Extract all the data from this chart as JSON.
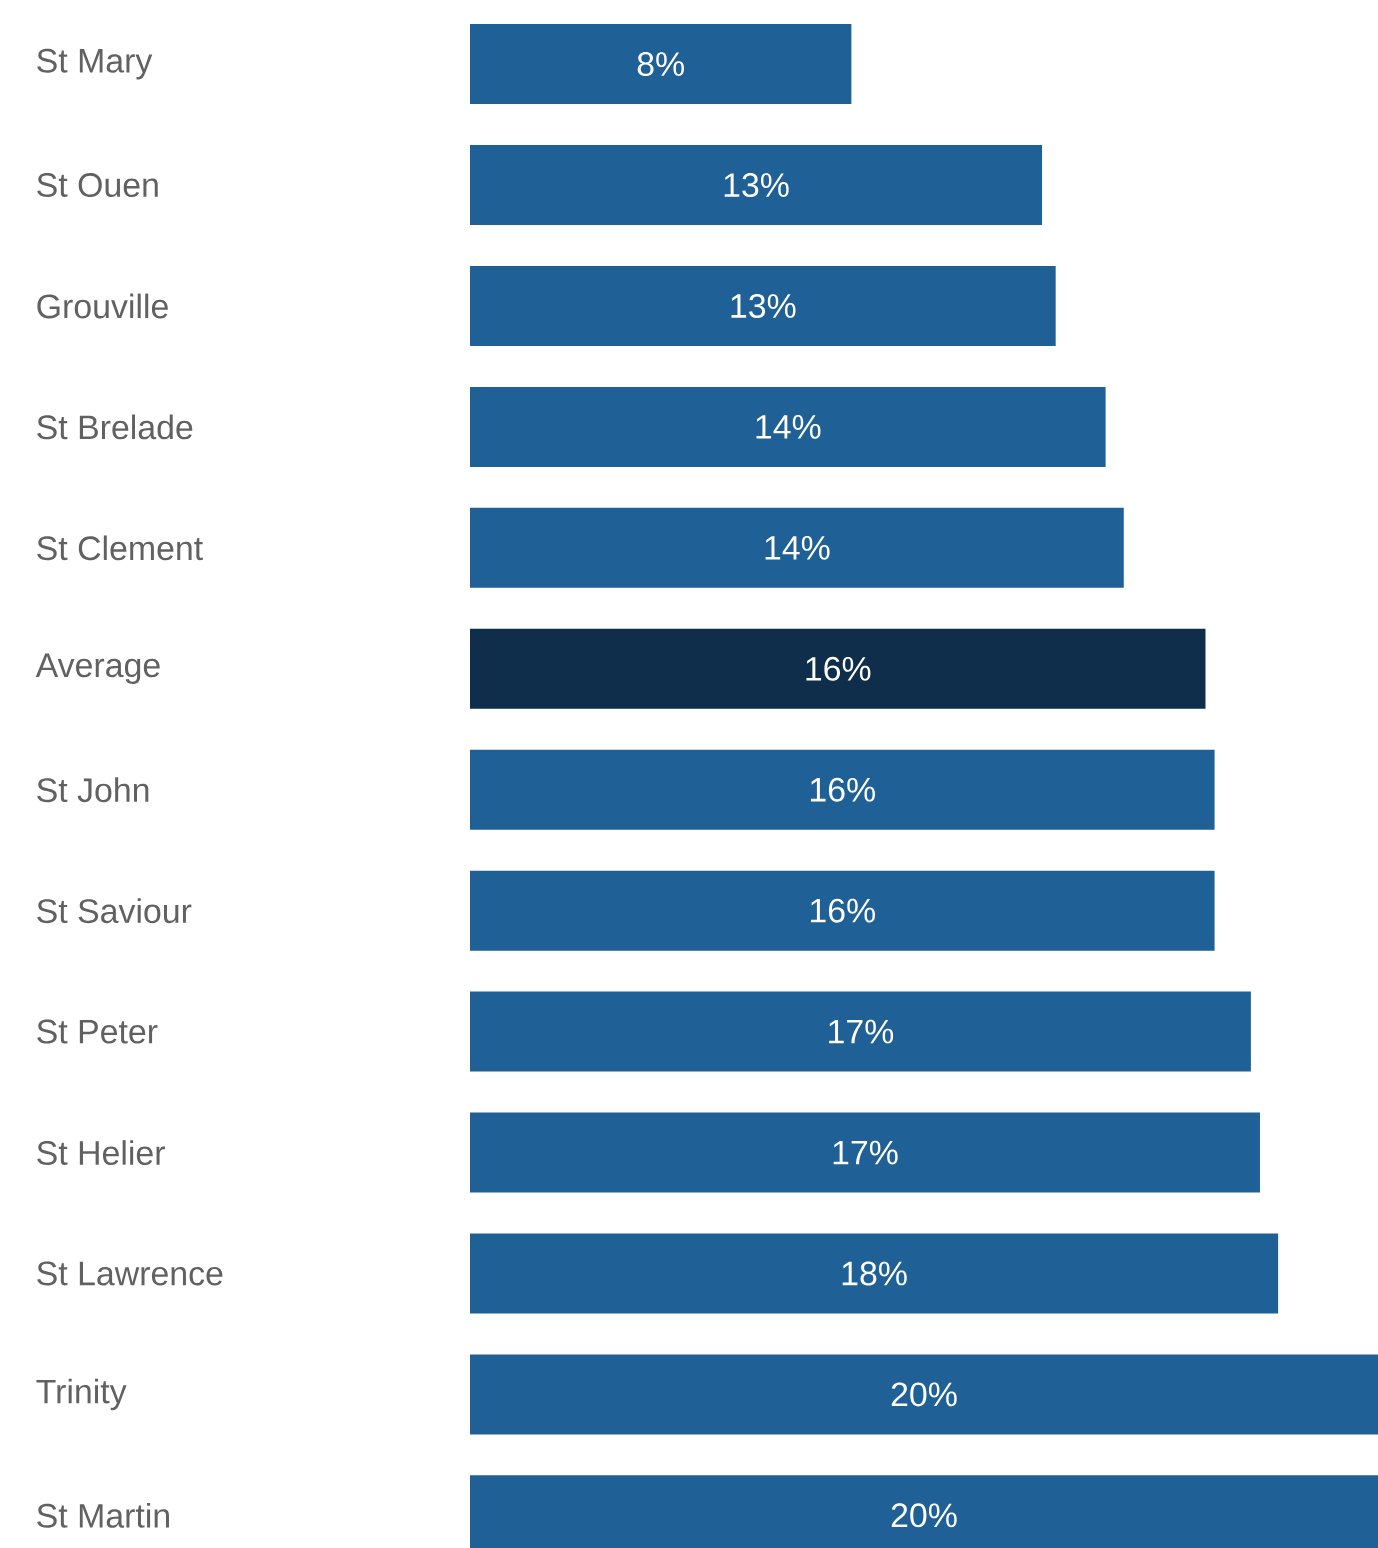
{
  "chart_data": {
    "type": "bar",
    "orientation": "horizontal",
    "categories": [
      "St Mary",
      "St Ouen",
      "Grouville",
      "St Brelade",
      "St Clement",
      "Average",
      "St John",
      "St Saviour",
      "St Peter",
      "St Helier",
      "St Lawrence",
      "Trinity",
      "St Martin"
    ],
    "values": [
      8.4,
      12.6,
      12.9,
      14.0,
      14.4,
      16.2,
      16.4,
      16.4,
      17.2,
      17.4,
      17.8,
      20.0,
      20.0
    ],
    "value_labels": [
      "8%",
      "13%",
      "13%",
      "14%",
      "14%",
      "16%",
      "16%",
      "16%",
      "17%",
      "17%",
      "18%",
      "20%",
      "20%"
    ],
    "colors": [
      "#1f6096",
      "#1f6096",
      "#1f6096",
      "#1f6096",
      "#1f6096",
      "#0e2e4b",
      "#1f6096",
      "#1f6096",
      "#1f6096",
      "#1f6096",
      "#1f6096",
      "#1f6096",
      "#1f6096"
    ]
  }
}
